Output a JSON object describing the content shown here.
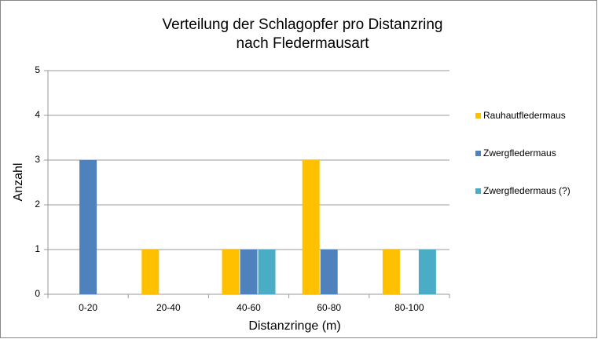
{
  "chart_data": {
    "type": "bar",
    "title": [
      "Verteilung der Schlagopfer pro Distanzring",
      "nach Fledermausart"
    ],
    "x_label": "Distanzringe  (m)",
    "y_label": "Anzahl",
    "categories": [
      "0-20",
      "20-40",
      "40-60",
      "60-80",
      "80-100"
    ],
    "series": [
      {
        "name": "Rauhautfledermaus",
        "color": "#ffc000",
        "values": [
          0,
          1,
          1,
          3,
          1
        ]
      },
      {
        "name": "Zwergfledermaus",
        "color": "#4f81bd",
        "values": [
          3,
          0,
          1,
          1,
          0
        ]
      },
      {
        "name": "Zwergfledermaus (?)",
        "color": "#4bacc6",
        "values": [
          0,
          0,
          1,
          0,
          1
        ]
      }
    ],
    "ylim": [
      0,
      5
    ],
    "yticks": [
      0,
      1,
      2,
      3,
      4,
      5
    ],
    "grid": true,
    "legend": "right"
  }
}
